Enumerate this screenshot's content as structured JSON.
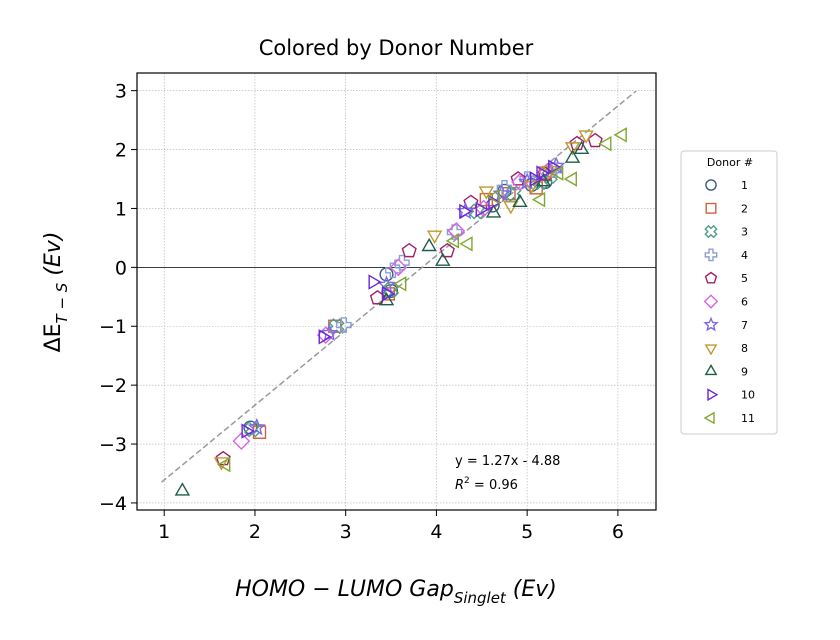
{
  "chart_data": {
    "type": "scatter",
    "title": "Colored by Donor Number",
    "xlabel": {
      "main": "HOMO − LUMO Gap",
      "sub": "Singlet",
      "unit": " (Ev)"
    },
    "ylabel": {
      "main": "ΔE",
      "sub": "T − S",
      "unit": " (Ev)"
    },
    "xlim": [
      0.7,
      6.42
    ],
    "ylim": [
      -4.12,
      3.3
    ],
    "xticks": [
      "1",
      "2",
      "3",
      "4",
      "5",
      "6"
    ],
    "yticks": [
      "−4",
      "−3",
      "−2",
      "−1",
      "0",
      "1",
      "2",
      "3"
    ],
    "grid": true,
    "zero_line": true,
    "legend_title": "Donor #",
    "legend_position": "right",
    "fit": {
      "slope": 1.27,
      "intercept": -4.88,
      "x_range": [
        0.97,
        6.2
      ],
      "color": "#999999"
    },
    "annotations": {
      "equation": "y = 1.27x - 4.88",
      "r2_label": "R",
      "r2_sup": "2",
      "r2_value": " = 0.96"
    },
    "series": [
      {
        "name": "1",
        "marker": "circle",
        "color": "#3d5a80",
        "points": [
          [
            1.95,
            -2.72
          ],
          [
            3.45,
            -0.12
          ],
          [
            3.5,
            -0.4
          ],
          [
            4.62,
            1.05
          ],
          [
            4.75,
            1.3
          ],
          [
            5.05,
            1.4
          ],
          [
            5.2,
            1.45
          ]
        ]
      },
      {
        "name": "2",
        "marker": "square",
        "color": "#d0603f",
        "points": [
          [
            2.05,
            -2.8
          ],
          [
            2.88,
            -1.0
          ],
          [
            3.47,
            -0.45
          ],
          [
            4.55,
            1.15
          ],
          [
            4.8,
            1.25
          ],
          [
            5.1,
            1.35
          ],
          [
            5.2,
            1.6
          ]
        ]
      },
      {
        "name": "3",
        "marker": "x-square",
        "color": "#4da081",
        "points": [
          [
            1.97,
            -2.75
          ],
          [
            2.9,
            -1.0
          ],
          [
            3.5,
            -0.38
          ],
          [
            4.45,
            0.95
          ],
          [
            4.85,
            1.25
          ],
          [
            5.15,
            1.45
          ],
          [
            5.25,
            1.55
          ]
        ]
      },
      {
        "name": "4",
        "marker": "plus",
        "color": "#8a9fd1",
        "points": [
          [
            2.98,
            -0.98
          ],
          [
            3.52,
            -0.05
          ],
          [
            3.62,
            0.08
          ],
          [
            4.2,
            0.6
          ],
          [
            4.75,
            1.35
          ],
          [
            5.0,
            1.5
          ],
          [
            5.3,
            1.65
          ]
        ]
      },
      {
        "name": "5",
        "marker": "pentagon",
        "color": "#a0216a",
        "points": [
          [
            1.65,
            -3.25
          ],
          [
            3.35,
            -0.52
          ],
          [
            3.7,
            0.28
          ],
          [
            4.12,
            0.28
          ],
          [
            4.38,
            1.1
          ],
          [
            4.9,
            1.5
          ],
          [
            5.2,
            1.58
          ],
          [
            5.55,
            2.1
          ],
          [
            5.75,
            2.15
          ]
        ]
      },
      {
        "name": "6",
        "marker": "diamond",
        "color": "#d864e8",
        "points": [
          [
            1.85,
            -2.95
          ],
          [
            2.78,
            -1.15
          ],
          [
            3.58,
            0.0
          ],
          [
            4.22,
            0.62
          ],
          [
            4.52,
            1.0
          ],
          [
            4.92,
            1.45
          ],
          [
            5.22,
            1.62
          ]
        ]
      },
      {
        "name": "7",
        "marker": "star",
        "color": "#7d6ae8",
        "points": [
          [
            2.02,
            -2.72
          ],
          [
            2.82,
            -1.12
          ],
          [
            3.45,
            -0.3
          ],
          [
            4.32,
            0.95
          ],
          [
            4.72,
            1.25
          ],
          [
            5.0,
            1.45
          ],
          [
            5.32,
            1.72
          ]
        ]
      },
      {
        "name": "8",
        "marker": "tri-down",
        "color": "#c09a2e",
        "points": [
          [
            1.63,
            -3.3
          ],
          [
            3.98,
            0.55
          ],
          [
            4.55,
            1.3
          ],
          [
            4.82,
            1.05
          ],
          [
            5.05,
            1.4
          ],
          [
            5.25,
            1.65
          ],
          [
            5.5,
            2.05
          ],
          [
            5.65,
            2.25
          ]
        ]
      },
      {
        "name": "9",
        "marker": "tri-up",
        "color": "#1d5e4a",
        "points": [
          [
            1.2,
            -3.8
          ],
          [
            3.45,
            -0.57
          ],
          [
            3.92,
            0.35
          ],
          [
            4.07,
            0.1
          ],
          [
            4.63,
            0.92
          ],
          [
            4.92,
            1.1
          ],
          [
            5.18,
            1.45
          ],
          [
            5.5,
            1.85
          ],
          [
            5.6,
            2.0
          ]
        ]
      },
      {
        "name": "10",
        "marker": "tri-right",
        "color": "#6a26d8",
        "points": [
          [
            1.9,
            -2.78
          ],
          [
            2.75,
            -1.18
          ],
          [
            3.3,
            -0.25
          ],
          [
            3.45,
            -0.45
          ],
          [
            4.3,
            0.95
          ],
          [
            4.48,
            0.98
          ],
          [
            4.62,
            1.1
          ],
          [
            5.08,
            1.5
          ],
          [
            5.15,
            1.6
          ],
          [
            5.28,
            1.7
          ]
        ]
      },
      {
        "name": "11",
        "marker": "tri-left",
        "color": "#7fa82e",
        "points": [
          [
            1.68,
            -3.35
          ],
          [
            3.62,
            -0.28
          ],
          [
            4.2,
            0.45
          ],
          [
            4.35,
            0.4
          ],
          [
            4.65,
            1.2
          ],
          [
            5.15,
            1.15
          ],
          [
            5.35,
            1.6
          ],
          [
            5.5,
            1.5
          ],
          [
            5.88,
            2.1
          ],
          [
            6.05,
            2.25
          ]
        ]
      }
    ]
  }
}
